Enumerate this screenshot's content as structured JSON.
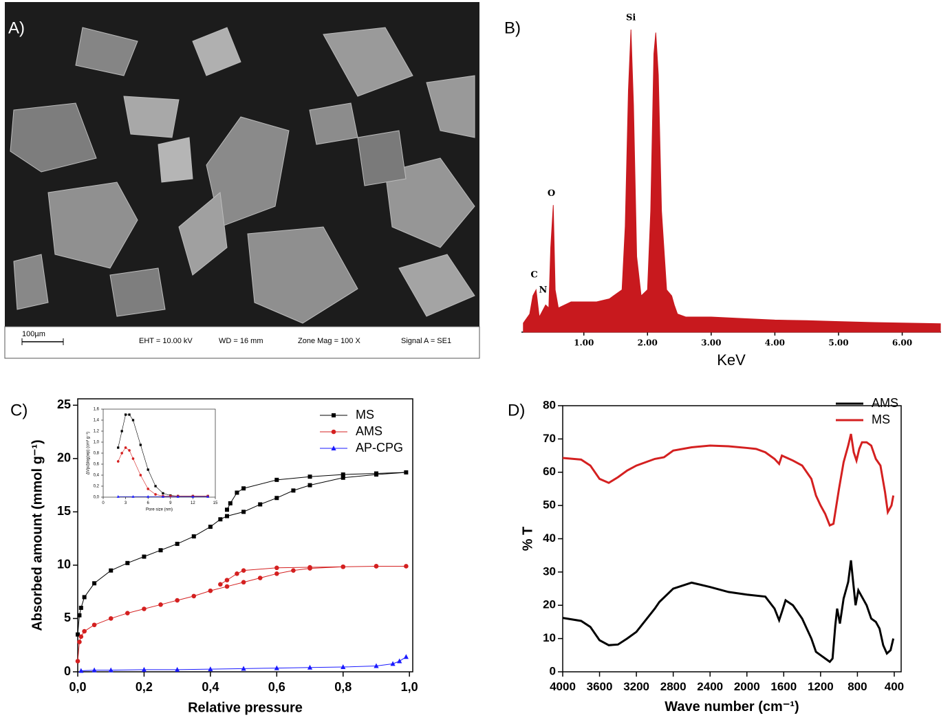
{
  "image_panel": {
    "label": "A)",
    "scale_bar": "100µm",
    "footer": [
      "EHT = 10.00 kV",
      "WD =  16 mm",
      "Zone Mag =  100 X",
      "Signal A = SE1"
    ]
  },
  "chart_data": [
    {
      "type": "area",
      "panel_label": "B)",
      "x_label": "KeV",
      "color": "#c8191e",
      "xlim": [
        0.02,
        6.61
      ],
      "ylim": [
        0,
        100
      ],
      "xticks": [
        {
          "value": 1,
          "label": "1.00"
        },
        {
          "value": 2,
          "label": "2.00"
        },
        {
          "value": 3,
          "label": "3.00"
        },
        {
          "value": 4,
          "label": "4.00"
        },
        {
          "value": 5,
          "label": "5.00"
        },
        {
          "value": 6,
          "label": "6.00"
        }
      ],
      "annotations": [
        {
          "text": "C",
          "x": 0.22,
          "y": 17
        },
        {
          "text": "N",
          "x": 0.36,
          "y": 12
        },
        {
          "text": "O",
          "x": 0.49,
          "y": 44
        },
        {
          "text": "Si",
          "x": 1.74,
          "y": 102
        }
      ],
      "series": [
        {
          "x": [
            0.05,
            0.15,
            0.2,
            0.25,
            0.3,
            0.35,
            0.4,
            0.45,
            0.48,
            0.52,
            0.55,
            0.6,
            0.8,
            1.0,
            1.2,
            1.4,
            1.6,
            1.65,
            1.7,
            1.74,
            1.78,
            1.83,
            1.9,
            2.0,
            2.05,
            2.1,
            2.13,
            2.17,
            2.22,
            2.3,
            2.38,
            2.42,
            2.47,
            2.6,
            3.0,
            3.5,
            4.0,
            4.5,
            5.0,
            5.5,
            6.0,
            6.6
          ],
          "values": [
            3,
            6,
            12,
            14,
            5,
            7,
            9,
            8,
            28,
            42,
            14,
            8,
            10,
            10,
            10,
            11,
            14,
            35,
            80,
            100,
            75,
            25,
            12,
            14,
            40,
            92,
            99,
            85,
            40,
            14,
            12,
            9,
            6,
            5,
            5,
            4.5,
            4,
            3.8,
            3.5,
            3.2,
            3,
            2.8
          ]
        }
      ]
    },
    {
      "type": "line",
      "panel_label": "C)",
      "x_label": "Relative pressure",
      "y_label": "Absorbed amount (mmol g⁻¹)",
      "xlim": [
        0,
        1.01
      ],
      "ylim": [
        0,
        25.6
      ],
      "box": true,
      "legend": "upper right",
      "xticks": [
        {
          "value": 0,
          "label": "0,0"
        },
        {
          "value": 0.2,
          "label": "0,2"
        },
        {
          "value": 0.4,
          "label": "0,4"
        },
        {
          "value": 0.6,
          "label": "0,6"
        },
        {
          "value": 0.8,
          "label": "0,8"
        },
        {
          "value": 1,
          "label": "1,0"
        }
      ],
      "yticks": [
        0,
        5,
        10,
        15,
        20,
        25
      ],
      "series": [
        {
          "name": "MS",
          "color": "#000000",
          "marker": "square",
          "x": [
            0,
            0.005,
            0.01,
            0.02,
            0.05,
            0.1,
            0.15,
            0.2,
            0.25,
            0.3,
            0.35,
            0.4,
            0.43,
            0.45,
            0.5,
            0.55,
            0.6,
            0.65,
            0.7,
            0.8,
            0.9,
            0.99,
            0.9,
            0.8,
            0.7,
            0.6,
            0.5,
            0.48,
            0.46,
            0.45
          ],
          "values": [
            3.5,
            5.3,
            6.0,
            7.0,
            8.3,
            9.5,
            10.2,
            10.8,
            11.4,
            12.0,
            12.7,
            13.6,
            14.3,
            14.6,
            15.0,
            15.7,
            16.3,
            17.0,
            17.5,
            18.2,
            18.5,
            18.7,
            18.6,
            18.5,
            18.3,
            18.0,
            17.2,
            16.8,
            15.8,
            15.2
          ]
        },
        {
          "name": "AMS",
          "color": "#d42020",
          "marker": "circle",
          "x": [
            0,
            0.005,
            0.01,
            0.02,
            0.05,
            0.1,
            0.15,
            0.2,
            0.25,
            0.3,
            0.35,
            0.4,
            0.45,
            0.5,
            0.55,
            0.6,
            0.65,
            0.7,
            0.8,
            0.9,
            0.99,
            0.9,
            0.8,
            0.7,
            0.6,
            0.5,
            0.48,
            0.45,
            0.43
          ],
          "values": [
            1.0,
            2.8,
            3.3,
            3.8,
            4.4,
            5.0,
            5.5,
            5.9,
            6.3,
            6.7,
            7.1,
            7.6,
            8.0,
            8.4,
            8.8,
            9.2,
            9.5,
            9.7,
            9.85,
            9.9,
            9.9,
            9.9,
            9.85,
            9.8,
            9.75,
            9.5,
            9.2,
            8.6,
            8.2
          ]
        },
        {
          "name": "AP-CPG",
          "color": "#1a1aff",
          "marker": "triangle",
          "x": [
            0.01,
            0.05,
            0.1,
            0.2,
            0.3,
            0.4,
            0.5,
            0.6,
            0.7,
            0.8,
            0.9,
            0.95,
            0.97,
            0.99
          ],
          "values": [
            0.1,
            0.15,
            0.15,
            0.2,
            0.2,
            0.25,
            0.3,
            0.35,
            0.4,
            0.45,
            0.55,
            0.75,
            1.0,
            1.4
          ]
        }
      ]
    },
    {
      "type": "line",
      "x_label": "Pore size (nm)",
      "y_label": "ΔVp/Δlog(wp) (cm³ g⁻¹)",
      "xlim": [
        0,
        15
      ],
      "ylim": [
        0,
        1.6
      ],
      "box": true,
      "xticks": [
        0,
        3,
        6,
        9,
        12,
        15
      ],
      "yticks": [
        {
          "value": 0,
          "label": "0,0"
        },
        {
          "value": 0.2,
          "label": "0,2"
        },
        {
          "value": 0.4,
          "label": "0,4"
        },
        {
          "value": 0.6,
          "label": "0,6"
        },
        {
          "value": 0.8,
          "label": "0,8"
        },
        {
          "value": 1,
          "label": "1,0"
        },
        {
          "value": 1.2,
          "label": "1,2"
        },
        {
          "value": 1.4,
          "label": "1,4"
        },
        {
          "value": 1.6,
          "label": "1,6"
        }
      ],
      "series": [
        {
          "color": "#000000",
          "marker": "square",
          "x": [
            2,
            2.5,
            3,
            3.5,
            4,
            5,
            6,
            7,
            8,
            9,
            10,
            12,
            14
          ],
          "values": [
            0.9,
            1.2,
            1.5,
            1.5,
            1.4,
            0.95,
            0.5,
            0.2,
            0.07,
            0.03,
            0.02,
            0.02,
            0.02
          ]
        },
        {
          "color": "#d42020",
          "marker": "circle",
          "x": [
            2,
            2.5,
            3,
            3.5,
            4,
            5,
            6,
            7,
            8,
            9,
            10,
            12,
            14
          ],
          "values": [
            0.65,
            0.8,
            0.9,
            0.85,
            0.7,
            0.4,
            0.15,
            0.05,
            0.02,
            0.02,
            0.02,
            0.02,
            0.02
          ]
        },
        {
          "color": "#1a1aff",
          "marker": "triangle",
          "x": [
            2,
            4,
            6,
            8,
            10,
            12,
            14
          ],
          "values": [
            0.01,
            0.01,
            0.01,
            0.01,
            0.01,
            0.01,
            0.01
          ]
        }
      ]
    },
    {
      "type": "line",
      "panel_label": "D)",
      "x_label": "Wave number (cm⁻¹)",
      "y_label": "% T",
      "xlim": [
        4000,
        325
      ],
      "ylim": [
        0,
        80
      ],
      "box": true,
      "legend": "upper right",
      "xticks": [
        4000,
        3600,
        3200,
        2800,
        2400,
        2000,
        1600,
        1200,
        800,
        400
      ],
      "yticks": [
        0,
        10,
        20,
        30,
        40,
        50,
        60,
        70,
        80
      ],
      "series": [
        {
          "name": "AMS",
          "color": "#000000",
          "x": [
            4000,
            3800,
            3700,
            3600,
            3500,
            3400,
            3300,
            3200,
            3000,
            2950,
            2800,
            2600,
            2400,
            2200,
            2000,
            1800,
            1700,
            1650,
            1620,
            1580,
            1500,
            1400,
            1300,
            1250,
            1200,
            1150,
            1100,
            1070,
            1040,
            1020,
            990,
            950,
            900,
            870,
            850,
            820,
            790,
            740,
            700,
            650,
            600,
            560,
            520,
            480,
            440,
            410
          ],
          "values": [
            16.2,
            15.3,
            13.5,
            9.5,
            8,
            8.2,
            10,
            12,
            19,
            21,
            25,
            26.8,
            25.5,
            24,
            23.2,
            22.6,
            19,
            15.5,
            18,
            21.5,
            20,
            16,
            10,
            6,
            5,
            4,
            3,
            4,
            14,
            19,
            14.5,
            22,
            27,
            33.5,
            28,
            20,
            24.5,
            22,
            20,
            16,
            15,
            13,
            8,
            5.5,
            6.5,
            10
          ]
        },
        {
          "name": "MS",
          "color": "#d42020",
          "x": [
            4000,
            3800,
            3700,
            3600,
            3500,
            3400,
            3300,
            3200,
            3000,
            2900,
            2800,
            2600,
            2400,
            2200,
            2000,
            1900,
            1800,
            1700,
            1650,
            1620,
            1580,
            1500,
            1400,
            1300,
            1250,
            1200,
            1150,
            1100,
            1060,
            1000,
            950,
            900,
            870,
            840,
            810,
            780,
            750,
            700,
            650,
            600,
            550,
            500,
            470,
            430,
            410
          ],
          "values": [
            64.3,
            63.8,
            62,
            58,
            56.8,
            58.5,
            60.5,
            62,
            64,
            64.5,
            66.5,
            67.5,
            68,
            67.8,
            67.3,
            67,
            66,
            64,
            62.5,
            65,
            64.5,
            63.5,
            62,
            58,
            53,
            50,
            47.5,
            44,
            44.5,
            55,
            63,
            68,
            71.5,
            66,
            63.5,
            67,
            69,
            69,
            68,
            64,
            62,
            54,
            48,
            50,
            53
          ]
        }
      ]
    }
  ]
}
